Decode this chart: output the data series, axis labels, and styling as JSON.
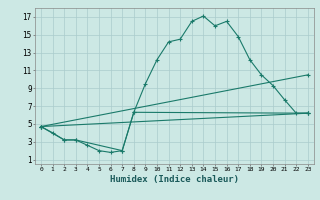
{
  "background_color": "#cce8e4",
  "grid_color": "#aacccc",
  "line_color": "#1a7a6a",
  "xlabel": "Humidex (Indice chaleur)",
  "xlim": [
    -0.5,
    23.5
  ],
  "ylim": [
    0.5,
    18
  ],
  "xticks": [
    0,
    1,
    2,
    3,
    4,
    5,
    6,
    7,
    8,
    9,
    10,
    11,
    12,
    13,
    14,
    15,
    16,
    17,
    18,
    19,
    20,
    21,
    22,
    23
  ],
  "yticks": [
    1,
    3,
    5,
    7,
    9,
    11,
    13,
    15,
    17
  ],
  "series1_x": [
    0,
    1,
    2,
    3,
    4,
    5,
    6,
    7,
    8,
    9,
    10,
    11,
    12,
    13,
    14,
    15,
    16,
    17,
    18,
    19,
    20,
    21,
    22,
    23
  ],
  "series1_y": [
    4.7,
    4.0,
    3.2,
    3.2,
    2.6,
    2.0,
    1.8,
    2.0,
    6.3,
    9.5,
    12.2,
    14.2,
    14.5,
    16.5,
    17.1,
    16.0,
    16.5,
    14.8,
    12.2,
    10.5,
    9.3,
    7.7,
    6.2,
    6.2
  ],
  "series2_x": [
    0,
    2,
    3,
    7,
    8,
    23
  ],
  "series2_y": [
    4.7,
    3.2,
    3.2,
    2.0,
    6.3,
    6.2
  ],
  "series3_x": [
    0,
    23
  ],
  "series3_y": [
    4.7,
    10.5
  ],
  "series4_x": [
    0,
    23
  ],
  "series4_y": [
    4.7,
    6.2
  ]
}
